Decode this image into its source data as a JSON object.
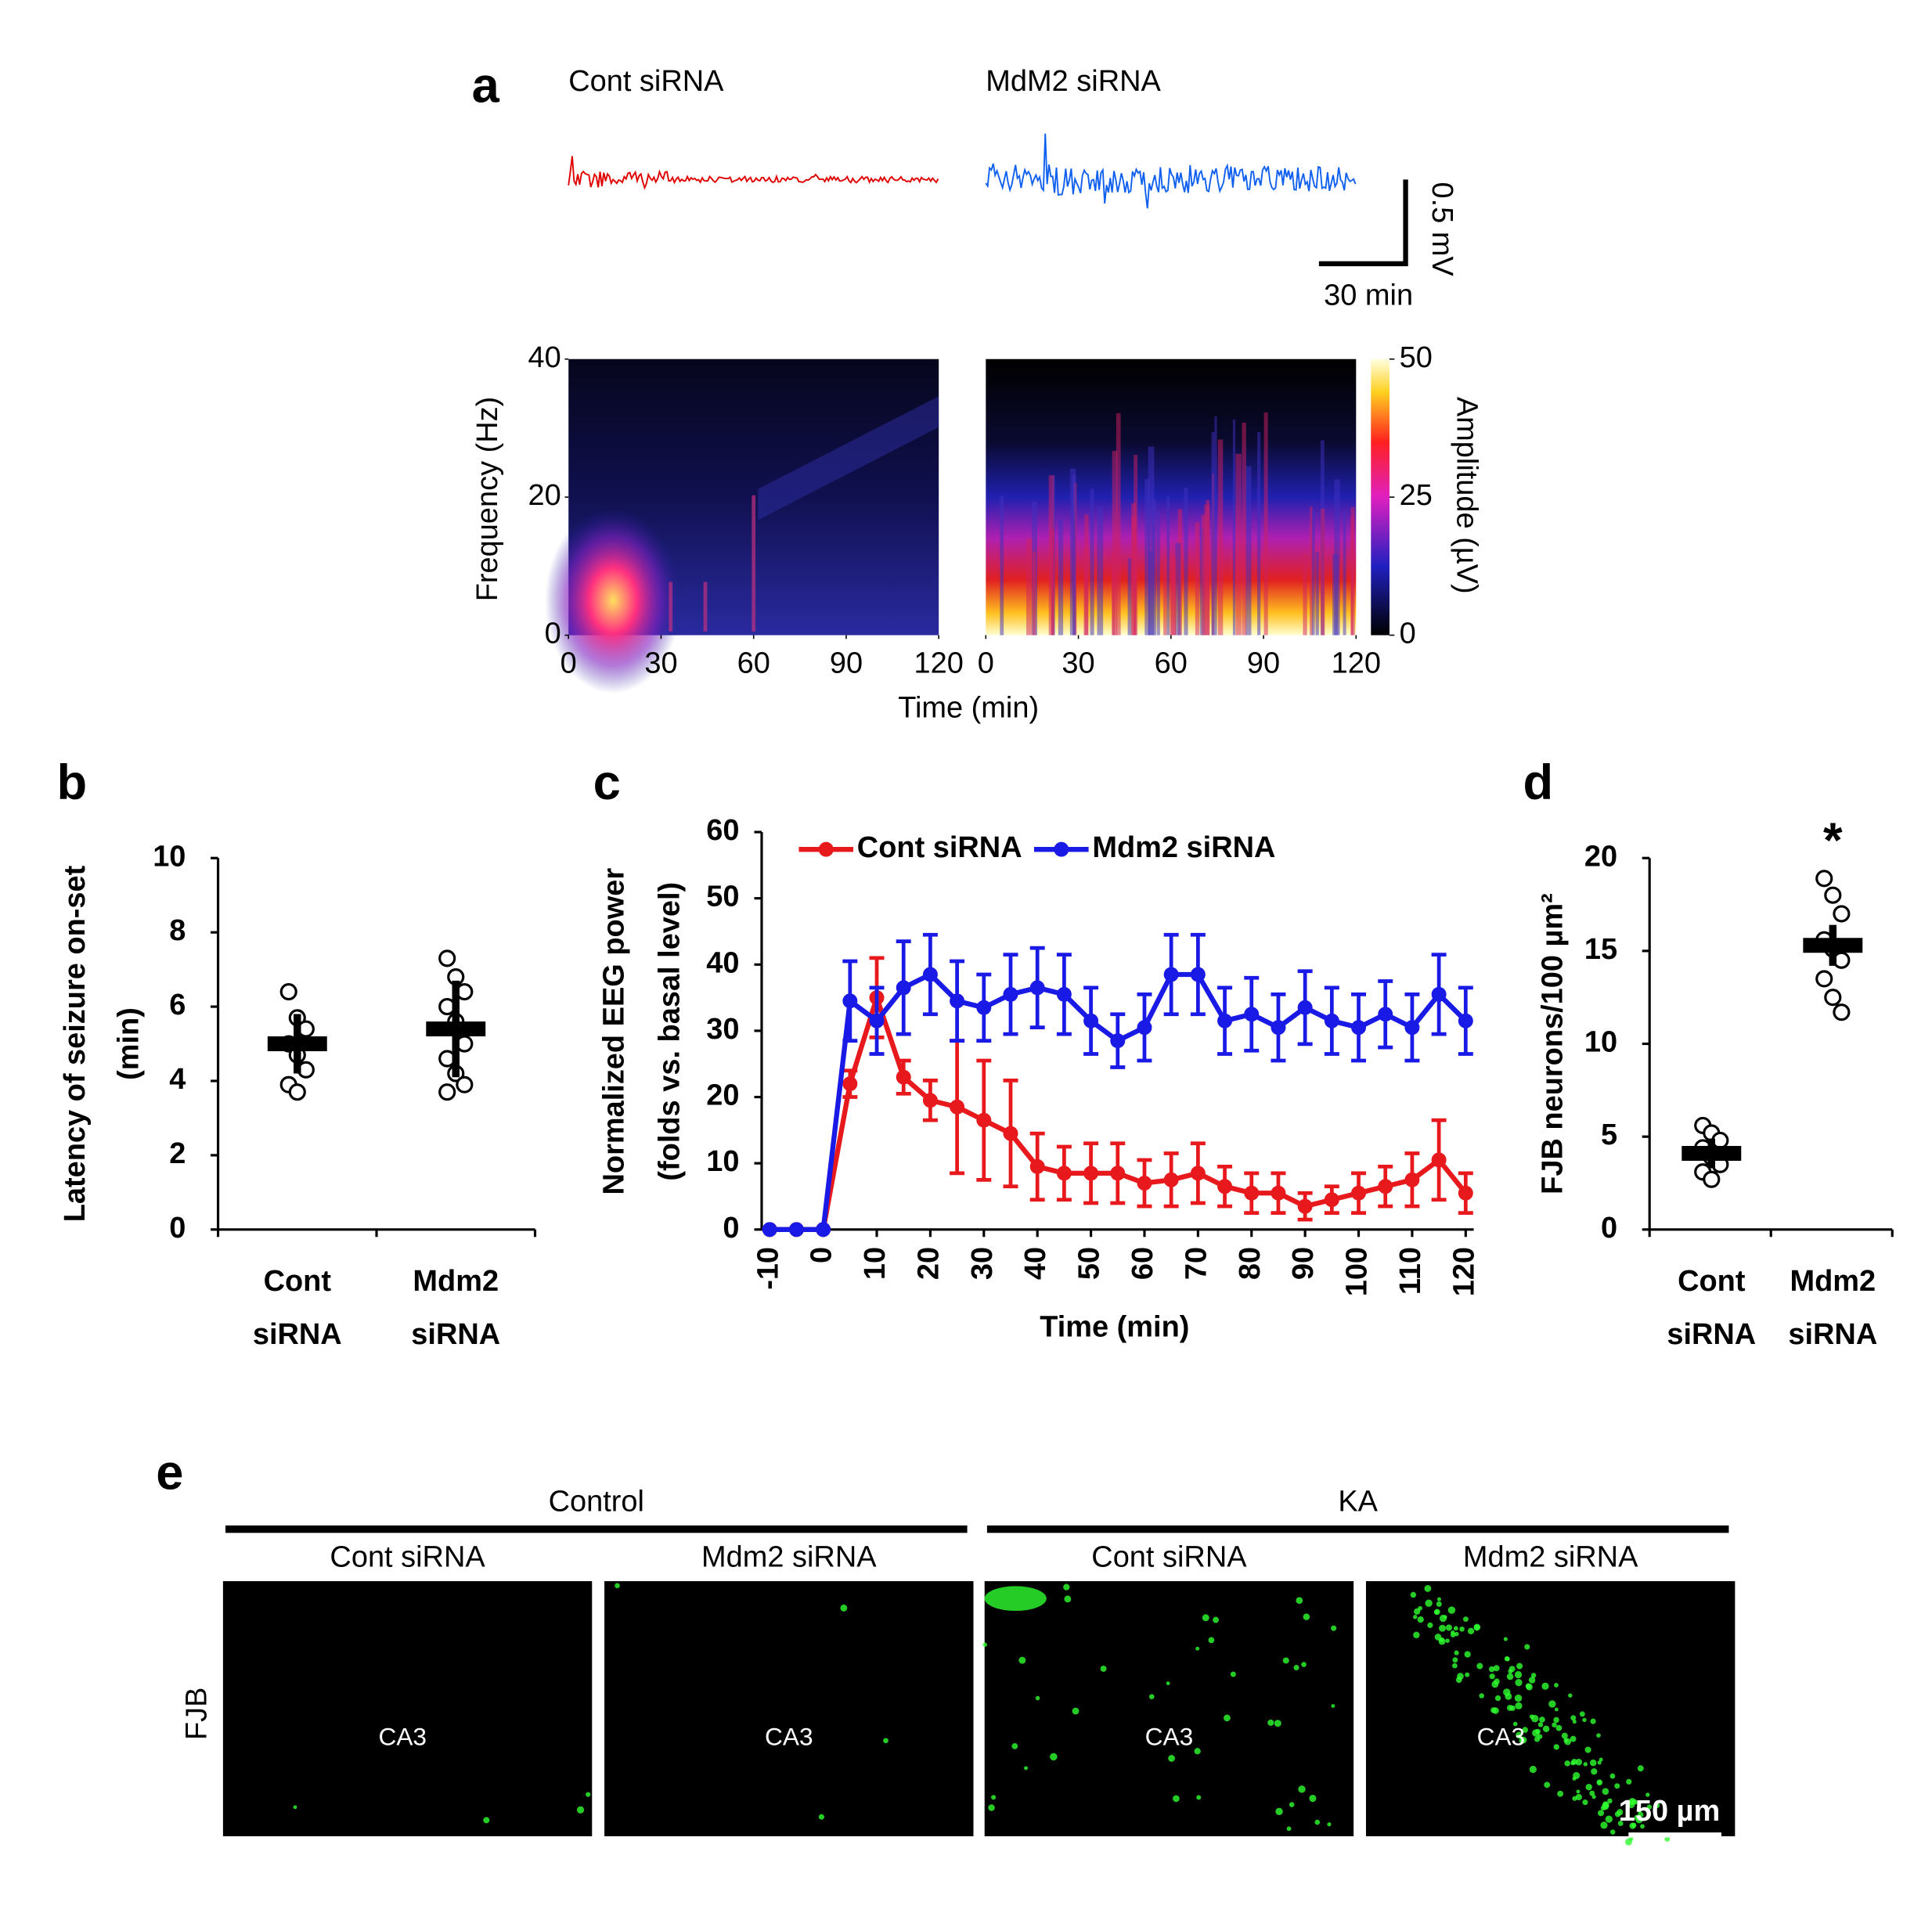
{
  "chart_data": [
    {
      "type": "spectrogram",
      "panel_label": "a",
      "titles": [
        "Cont siRNA",
        "MdM2 siRNA"
      ],
      "scale_bar": [
        "0.5 mV",
        "30 min"
      ],
      "xlabel": "Time (min)",
      "ylabel": "Frequency (Hz)",
      "colorbar_label": "Amplitude (µV)",
      "xlim": [
        0,
        120
      ],
      "ylim": [
        0,
        40
      ],
      "xticks": [
        0,
        30,
        60,
        90,
        120
      ],
      "yticks": [
        0,
        20,
        40
      ],
      "clim": [
        0,
        50
      ],
      "cticks": [
        0,
        25,
        50
      ],
      "trace_colors": [
        "#e00000",
        "#1060f0"
      ]
    },
    {
      "type": "dot",
      "panel_label": "b",
      "ylabel": [
        "Latency of seizure on-set",
        "(min)"
      ],
      "categories": [
        [
          "Cont",
          "siRNA"
        ],
        [
          "Mdm2",
          "siRNA"
        ]
      ],
      "points": [
        [
          6.4,
          5.7,
          5.4,
          5.0,
          4.7,
          4.3,
          3.9,
          3.7
        ],
        [
          7.3,
          6.8,
          6.4,
          6.0,
          5.6,
          5.0,
          4.6,
          4.2,
          3.9,
          3.7
        ]
      ],
      "means": [
        5.0,
        5.4
      ],
      "errors": [
        0.8,
        1.3
      ],
      "ylim": [
        0,
        10
      ],
      "yticks": [
        0,
        2,
        4,
        6,
        8,
        10
      ],
      "color": "#000000"
    },
    {
      "type": "line",
      "panel_label": "c",
      "ylabel": [
        "Normalized EEG power",
        "(folds vs. basal level)"
      ],
      "xlabel": "Time (min)",
      "x": [
        -10,
        -5,
        0,
        5,
        10,
        15,
        20,
        25,
        30,
        35,
        40,
        45,
        50,
        55,
        60,
        65,
        70,
        75,
        80,
        85,
        90,
        95,
        100,
        105,
        110,
        115,
        120
      ],
      "series": [
        {
          "name": "Cont siRNA",
          "color": "#e8191c",
          "values": [
            0,
            0,
            0,
            22,
            35,
            23,
            19.5,
            18.5,
            16.5,
            14.5,
            9.5,
            8.5,
            8.5,
            8.5,
            7,
            7.5,
            8.5,
            6.5,
            5.5,
            5.5,
            3.5,
            4.5,
            5.5,
            6.5,
            7.5,
            10.5,
            5.5
          ],
          "errors": [
            0,
            0,
            0,
            2,
            6,
            2.5,
            3,
            10,
            9,
            8,
            5,
            4,
            4.5,
            4.5,
            3.5,
            4,
            4.5,
            3,
            3,
            3,
            2,
            2,
            3,
            3,
            4,
            6,
            3
          ]
        },
        {
          "name": "Mdm2 siRNA",
          "color": "#1a1ae6",
          "values": [
            0,
            0,
            0,
            34.5,
            31.5,
            36.5,
            38.5,
            34.5,
            33.5,
            35.5,
            36.5,
            35.5,
            31.5,
            28.5,
            30.5,
            38.5,
            38.5,
            31.5,
            32.5,
            30.5,
            33.5,
            31.5,
            30.5,
            32.5,
            30.5,
            35.5,
            31.5
          ],
          "errors": [
            0,
            0,
            0,
            6,
            5,
            7,
            6,
            6,
            5,
            6,
            6,
            6,
            5,
            4,
            5,
            6,
            6,
            5,
            5.5,
            5,
            5.5,
            5,
            5,
            5,
            5,
            6,
            5
          ]
        }
      ],
      "xlim": [
        -11.5,
        121.5
      ],
      "ylim": [
        0,
        60
      ],
      "xticks": [
        -10,
        0,
        10,
        20,
        30,
        40,
        50,
        60,
        70,
        80,
        90,
        100,
        110,
        120
      ],
      "yticks": [
        0,
        10,
        20,
        30,
        40,
        50,
        60
      ],
      "legend": "top"
    },
    {
      "type": "dot",
      "panel_label": "d",
      "ylabel": [
        "FJB neurons/100 µm²"
      ],
      "categories": [
        [
          "Cont",
          "siRNA"
        ],
        [
          "Mdm2",
          "siRNA"
        ]
      ],
      "points": [
        [
          5.6,
          5.2,
          4.8,
          4.4,
          3.9,
          3.5,
          3.1,
          2.7
        ],
        [
          18.9,
          18.0,
          17.0,
          15.6,
          15.1,
          14.5,
          13.5,
          12.5,
          11.7
        ]
      ],
      "means": [
        4.1,
        15.3
      ],
      "errors": [
        0.8,
        1.1
      ],
      "ylim": [
        0,
        20
      ],
      "yticks": [
        0,
        5,
        10,
        15,
        20
      ],
      "annotation": "*",
      "color": "#000000"
    }
  ],
  "panel_e": {
    "label": "e",
    "groups": [
      "Control",
      "KA"
    ],
    "columns": [
      "Cont siRNA",
      "Mdm2 siRNA",
      "Cont siRNA",
      "Mdm2 siRNA"
    ],
    "row_label": "FJB",
    "regions": [
      "CA3",
      "CA3",
      "CA3",
      "CA3"
    ],
    "scale_bar": "150 µm"
  }
}
